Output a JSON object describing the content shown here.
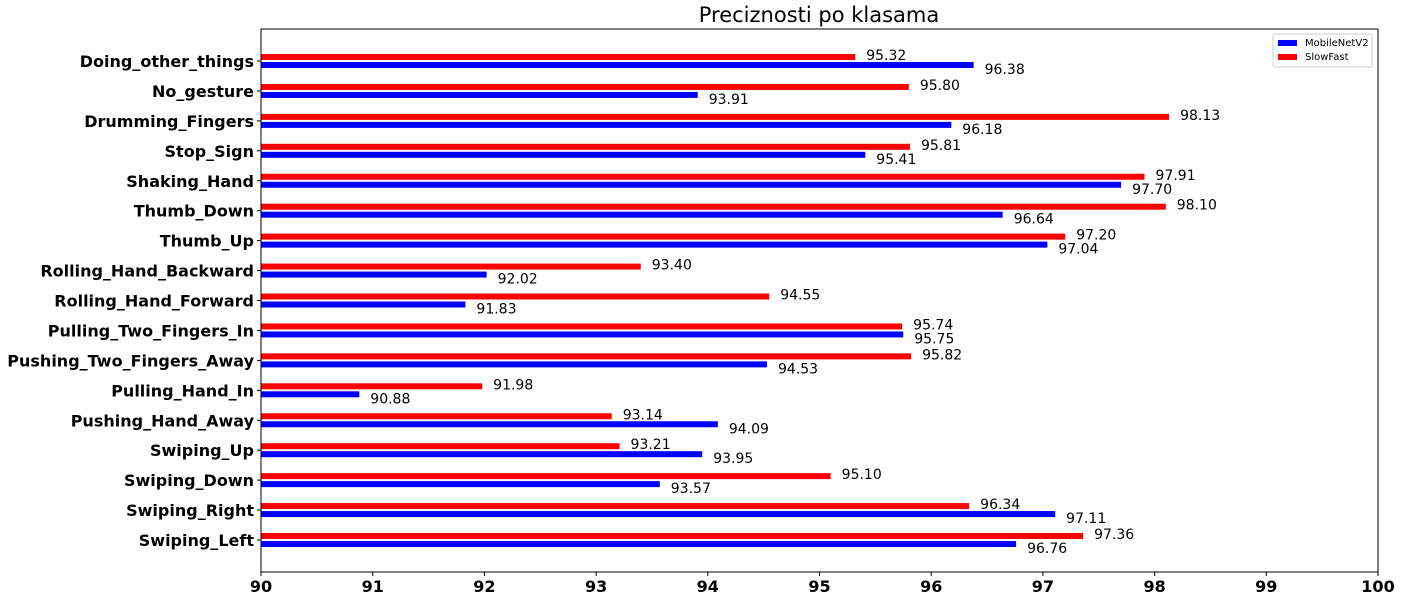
{
  "chart_data": {
    "type": "bar",
    "orientation": "horizontal",
    "title": "Preciznosti po klasama",
    "xlabel": "",
    "ylabel": "",
    "xlim": [
      90,
      100
    ],
    "xticks": [
      "90",
      "91",
      "92",
      "93",
      "94",
      "95",
      "96",
      "97",
      "98",
      "99",
      "100"
    ],
    "grid": false,
    "legend_position": "top-right",
    "categories": [
      "Doing_other_things",
      "No_gesture",
      "Drumming_Fingers",
      "Stop_Sign",
      "Shaking_Hand",
      "Thumb_Down",
      "Thumb_Up",
      "Rolling_Hand_Backward",
      "Rolling_Hand_Forward",
      "Pulling_Two_Fingers_In",
      "Pushing_Two_Fingers_Away",
      "Pulling_Hand_In",
      "Pushing_Hand_Away",
      "Swiping_Up",
      "Swiping_Down",
      "Swiping_Right",
      "Swiping_Left"
    ],
    "series": [
      {
        "name": "MobileNetV2",
        "color": "#0000ff",
        "values": [
          96.38,
          93.91,
          96.18,
          95.41,
          97.7,
          96.64,
          97.04,
          92.02,
          91.83,
          95.75,
          94.53,
          90.88,
          94.09,
          93.95,
          93.57,
          97.11,
          96.76
        ],
        "labels": [
          "96.38",
          "93.91",
          "96.18",
          "95.41",
          "97.70",
          "96.64",
          "97.04",
          "92.02",
          "91.83",
          "95.75",
          "94.53",
          "90.88",
          "94.09",
          "93.95",
          "93.57",
          "97.11",
          "96.76"
        ]
      },
      {
        "name": "SlowFast",
        "color": "#ff0000",
        "values": [
          95.32,
          95.8,
          98.13,
          95.81,
          97.91,
          98.1,
          97.2,
          93.4,
          94.55,
          95.74,
          95.82,
          91.98,
          93.14,
          93.21,
          95.1,
          96.34,
          97.36
        ],
        "labels": [
          "95.32",
          "95.80",
          "98.13",
          "95.81",
          "97.91",
          "98.10",
          "97.20",
          "93.40",
          "94.55",
          "95.74",
          "95.82",
          "91.98",
          "93.14",
          "93.21",
          "95.10",
          "96.34",
          "97.36"
        ]
      }
    ]
  }
}
